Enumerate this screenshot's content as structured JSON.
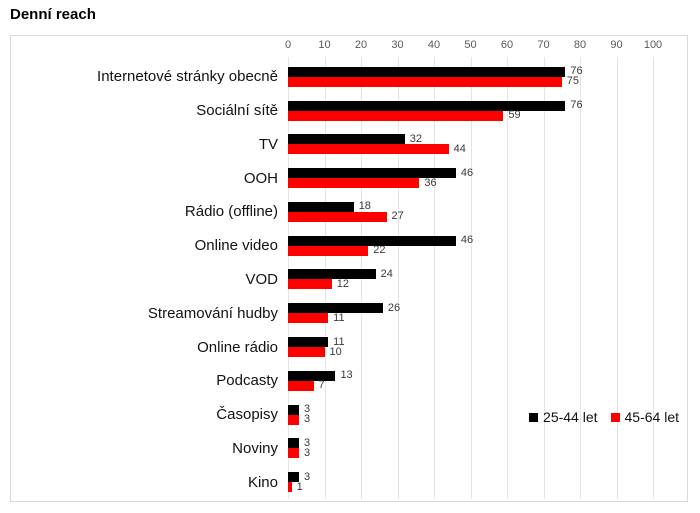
{
  "page": {
    "title": "Denní reach"
  },
  "chart_data": {
    "type": "bar",
    "orientation": "horizontal",
    "title": "Denní reach",
    "categories": [
      "Internetové stránky obecně",
      "Sociální sítě",
      "TV",
      "OOH",
      "Rádio (offline)",
      "Online video",
      "VOD",
      "Streamování hudby",
      "Online rádio",
      "Podcasty",
      "Časopisy",
      "Noviny",
      "Kino"
    ],
    "series": [
      {
        "name": "25-44 let",
        "color": "#000000",
        "values": [
          76,
          76,
          32,
          46,
          18,
          46,
          24,
          26,
          11,
          13,
          3,
          3,
          3
        ]
      },
      {
        "name": "45-64 let",
        "color": "#fe0000",
        "values": [
          75,
          59,
          44,
          36,
          27,
          22,
          12,
          11,
          10,
          7,
          3,
          3,
          1
        ]
      }
    ],
    "x_axis": {
      "position": "top",
      "min": 0,
      "max": 100,
      "ticks": [
        0,
        10,
        20,
        30,
        40,
        50,
        60,
        70,
        80,
        90,
        100
      ]
    },
    "grid": true,
    "legend_position": "inside-right",
    "colors": {
      "grid": "#e4e4e4",
      "border": "#d9d9d9",
      "tick_text": "#595959",
      "label_text": "#121212",
      "value_text": "#3a3a3a"
    }
  }
}
